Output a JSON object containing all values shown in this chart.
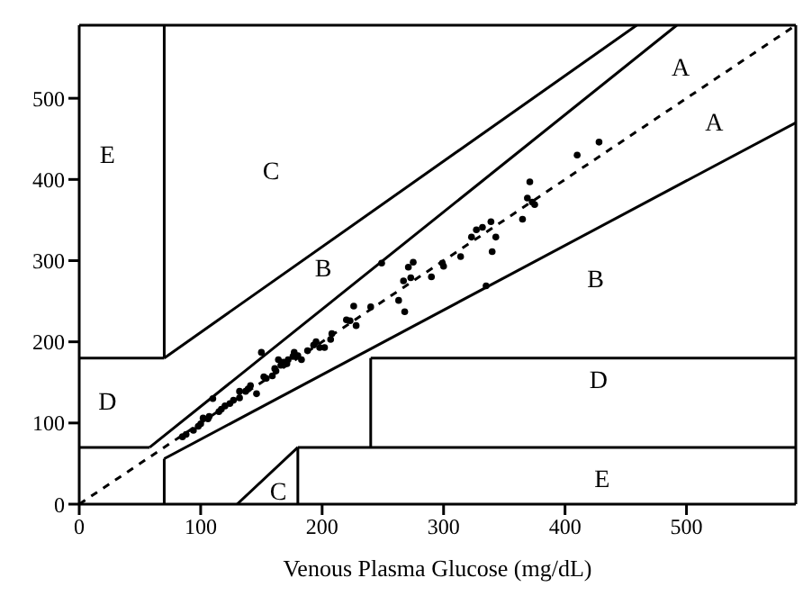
{
  "chart_data": {
    "type": "scatter",
    "xlabel": "Venous Plasma Glucose (mg/dL)",
    "xlim": [
      0,
      590
    ],
    "ylim": [
      0,
      590
    ],
    "xticks": [
      0,
      100,
      200,
      300,
      400,
      500
    ],
    "yticks": [
      0,
      100,
      200,
      300,
      400,
      500
    ],
    "grid": false,
    "series": [
      {
        "color": "#000000",
        "marker": "circle",
        "x": [
          85,
          88,
          94,
          98,
          100,
          102,
          106,
          107,
          110,
          115,
          117,
          120,
          124,
          127,
          132,
          132,
          137,
          139,
          141,
          146,
          150,
          152,
          154,
          159,
          161,
          162,
          164,
          166,
          168,
          171,
          172,
          176,
          177,
          180,
          183,
          188,
          193,
          195,
          198,
          202,
          207,
          208,
          220,
          223,
          226,
          228,
          240,
          249,
          263,
          267,
          268,
          271,
          273,
          275,
          290,
          299,
          300,
          314,
          323,
          327,
          332,
          335,
          339,
          340,
          343,
          365,
          369,
          371,
          373,
          375,
          410,
          428
        ],
        "values": [
          83,
          86,
          91,
          96,
          99,
          106,
          105,
          108,
          130,
          114,
          117,
          121,
          124,
          128,
          131,
          139,
          139,
          142,
          146,
          136,
          187,
          157,
          155,
          158,
          167,
          164,
          178,
          171,
          175,
          173,
          178,
          182,
          187,
          183,
          178,
          189,
          196,
          200,
          193,
          193,
          203,
          210,
          227,
          226,
          244,
          220,
          243,
          297,
          251,
          275,
          237,
          292,
          279,
          298,
          280,
          297,
          293,
          305,
          329,
          338,
          341,
          269,
          348,
          311,
          329,
          351,
          377,
          397,
          372,
          369,
          430,
          446
        ]
      },
      {
        "type": "line",
        "color": "#000000",
        "line_style": "dashed",
        "x": [
          0,
          590
        ],
        "values": [
          0,
          590
        ]
      },
      {
        "type": "line",
        "color": "#000000",
        "x": [
          70,
          70
        ],
        "values": [
          180,
          590
        ]
      },
      {
        "type": "line",
        "color": "#000000",
        "x": [
          70,
          70
        ],
        "values": [
          0,
          56
        ]
      },
      {
        "type": "line",
        "color": "#000000",
        "x": [
          0,
          70
        ],
        "values": [
          180,
          180
        ]
      },
      {
        "type": "line",
        "color": "#000000",
        "x": [
          0,
          58
        ],
        "values": [
          70,
          70
        ]
      },
      {
        "type": "line",
        "color": "#000000",
        "x": [
          58,
          492
        ],
        "values": [
          70,
          590
        ]
      },
      {
        "type": "line",
        "color": "#000000",
        "x": [
          70,
          590
        ],
        "values": [
          56,
          470
        ]
      },
      {
        "type": "line",
        "color": "#000000",
        "x": [
          70,
          459
        ],
        "values": [
          180,
          590
        ]
      },
      {
        "type": "line",
        "color": "#000000",
        "x": [
          180,
          590
        ],
        "values": [
          70,
          70
        ]
      },
      {
        "type": "line",
        "color": "#000000",
        "x": [
          180,
          180
        ],
        "values": [
          0,
          70
        ]
      },
      {
        "type": "line",
        "color": "#000000",
        "x": [
          130,
          180
        ],
        "values": [
          0,
          70
        ]
      },
      {
        "type": "line",
        "color": "#000000",
        "x": [
          240,
          590
        ],
        "values": [
          180,
          180
        ]
      },
      {
        "type": "line",
        "color": "#000000",
        "x": [
          240,
          240
        ],
        "values": [
          70,
          180
        ]
      }
    ],
    "annotations": [
      "E",
      "C",
      "B",
      "A",
      "A",
      "B",
      "D",
      "D",
      "E",
      "C"
    ]
  }
}
